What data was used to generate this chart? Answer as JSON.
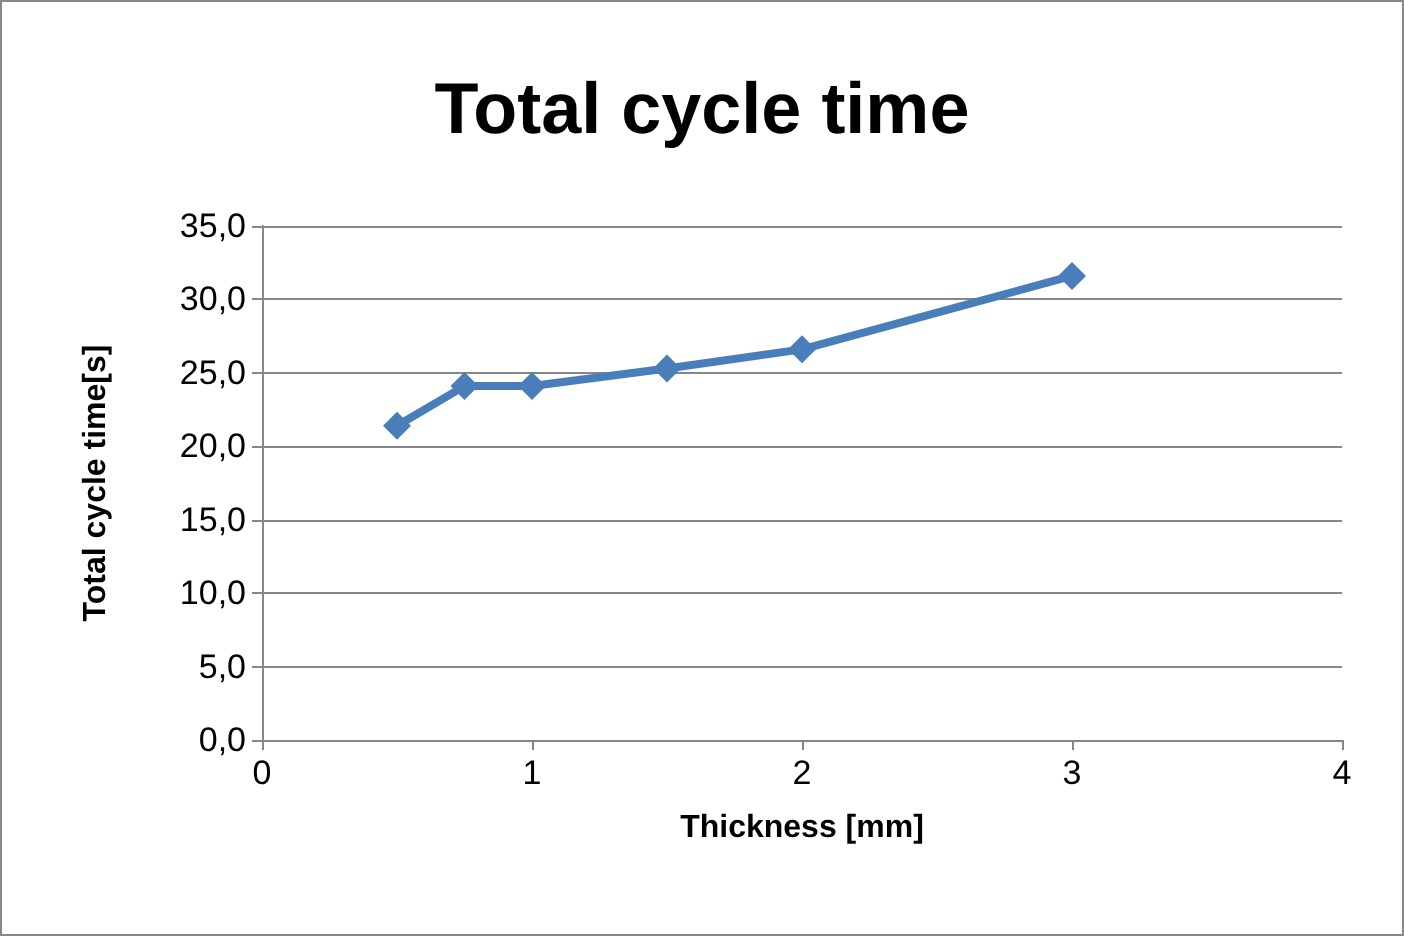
{
  "chart_data": {
    "type": "line",
    "title": "Total cycle time",
    "xlabel": "Thickness [mm]",
    "ylabel": "Total cycle time[s]",
    "x": [
      0.5,
      0.75,
      1,
      1.5,
      2,
      3
    ],
    "series": [
      {
        "color": "#4a7ebb",
        "values": [
          21.4,
          24.1,
          24.1,
          25.3,
          26.6,
          31.6
        ]
      }
    ],
    "xlim": [
      0,
      4
    ],
    "xticks": [
      0,
      1,
      2,
      3,
      4
    ],
    "ylim": [
      0,
      35
    ],
    "yticks": [
      {
        "value": 0,
        "label": "0,0"
      },
      {
        "value": 5,
        "label": "5,0"
      },
      {
        "value": 10,
        "label": "10,0"
      },
      {
        "value": 15,
        "label": "15,0"
      },
      {
        "value": 20,
        "label": "20,0"
      },
      {
        "value": 25,
        "label": "25,0"
      },
      {
        "value": 30,
        "label": "30,0"
      },
      {
        "value": 35,
        "label": "35,0"
      }
    ],
    "grid": "y",
    "marker": "diamond",
    "line_style": "solid"
  }
}
